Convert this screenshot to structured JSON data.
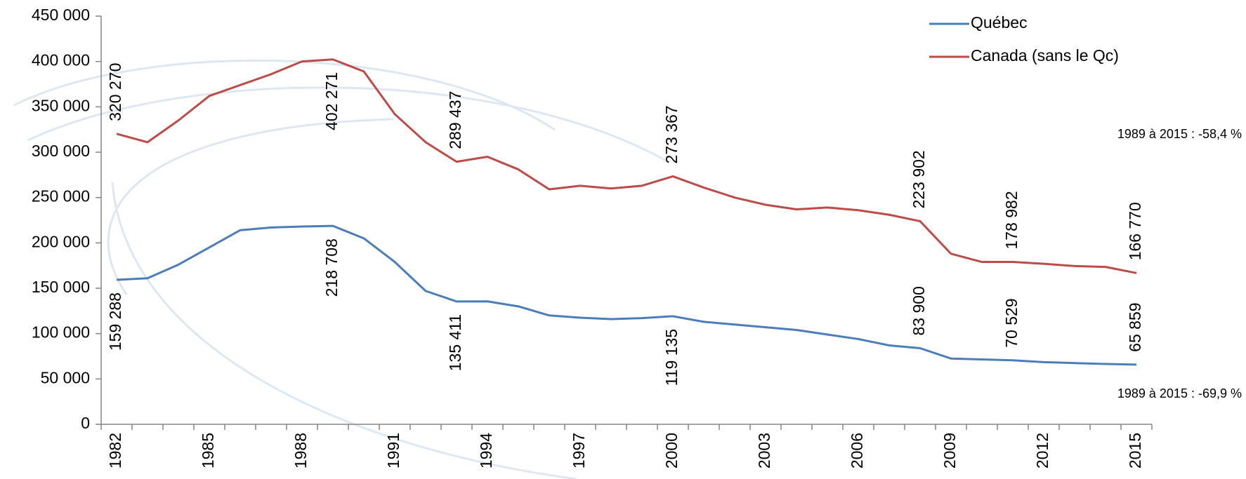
{
  "chart_data": {
    "type": "line",
    "categories": [
      "1982",
      null,
      null,
      "1985",
      null,
      null,
      "1988",
      null,
      null,
      "1991",
      null,
      null,
      "1994",
      null,
      null,
      "1997",
      null,
      null,
      "2000",
      null,
      null,
      "2003",
      null,
      null,
      "2006",
      null,
      null,
      "2009",
      null,
      null,
      "2012",
      null,
      null,
      "2015"
    ],
    "series": [
      {
        "name": "Québec",
        "color": "#4a7ebb",
        "values": [
          159288,
          161000,
          176000,
          195000,
          214000,
          217000,
          218000,
          218708,
          205000,
          179000,
          147000,
          135411,
          135500,
          130000,
          120000,
          117500,
          116000,
          117000,
          119135,
          113000,
          110000,
          107000,
          104000,
          99000,
          94000,
          87000,
          83900,
          72500,
          71500,
          70529,
          68500,
          67500,
          66500,
          65859
        ],
        "value_labels": [
          "159 288",
          null,
          null,
          null,
          null,
          null,
          null,
          "218 708",
          null,
          null,
          null,
          "135 411",
          null,
          null,
          null,
          null,
          null,
          null,
          "119 135",
          null,
          null,
          null,
          null,
          null,
          null,
          null,
          "83 900",
          null,
          null,
          "70 529",
          null,
          null,
          null,
          "65 859"
        ]
      },
      {
        "name": "Canada (sans le Qc)",
        "color": "#be4b48",
        "values": [
          320270,
          311000,
          335000,
          362000,
          374000,
          386000,
          400000,
          402271,
          389000,
          342000,
          311000,
          289437,
          295000,
          281000,
          259000,
          263000,
          260000,
          263000,
          273367,
          261000,
          250000,
          242000,
          237000,
          239000,
          236000,
          231000,
          223902,
          188000,
          179000,
          178982,
          177000,
          174500,
          173500,
          166770
        ],
        "value_labels": [
          "320 270",
          null,
          null,
          null,
          null,
          null,
          null,
          "402 271",
          null,
          null,
          null,
          "289 437",
          null,
          null,
          null,
          null,
          null,
          null,
          "273 367",
          null,
          null,
          null,
          null,
          null,
          null,
          null,
          "223 902",
          null,
          null,
          "178 982",
          null,
          null,
          null,
          "166 770"
        ]
      }
    ],
    "ylim": [
      0,
      450000
    ],
    "yticks": [
      {
        "value": 0,
        "label": "0"
      },
      {
        "value": 50000,
        "label": "50 000"
      },
      {
        "value": 100000,
        "label": "100 000"
      },
      {
        "value": 150000,
        "label": "150 000"
      },
      {
        "value": 200000,
        "label": "200 000"
      },
      {
        "value": 250000,
        "label": "250 000"
      },
      {
        "value": 300000,
        "label": "300 000"
      },
      {
        "value": 350000,
        "label": "350 000"
      },
      {
        "value": 400000,
        "label": "400 000"
      },
      {
        "value": 450000,
        "label": "450 000"
      }
    ],
    "annotations": [
      "1989 à 2015 : -58,4 %",
      "1989 à 2015 : -69,9 %"
    ],
    "legend": "top-right"
  }
}
